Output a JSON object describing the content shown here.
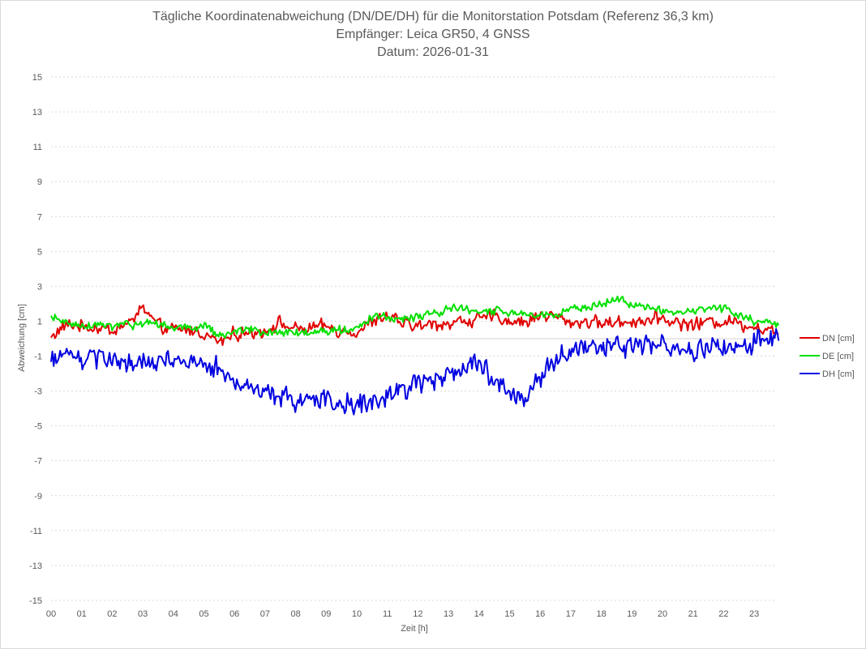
{
  "chart_data": {
    "type": "line",
    "title": "Tägliche Koordinatenabweichung (DN/DE/DH) für die Monitorstation Potsdam (Referenz 36,3 km)",
    "subtitle": "Empfänger: Leica GR50, 4 GNSS",
    "date_line": "Datum: 2026-01-31",
    "xlabel": "Zeit [h]",
    "ylabel": "Abweichung [cm]",
    "xlim": [
      0,
      24
    ],
    "ylim": [
      -15,
      15
    ],
    "y_ticks": [
      "15",
      "13",
      "11",
      "9",
      "7",
      "5",
      "3",
      "1",
      "-1",
      "-3",
      "-5",
      "-7",
      "-9",
      "-11",
      "-13",
      "-15"
    ],
    "x_ticks": [
      "00",
      "01",
      "02",
      "03",
      "04",
      "05",
      "06",
      "07",
      "08",
      "09",
      "10",
      "11",
      "12",
      "13",
      "14",
      "15",
      "16",
      "17",
      "18",
      "19",
      "20",
      "21",
      "22",
      "23"
    ],
    "grid": true,
    "legend_position": "right",
    "x": [
      0,
      0.5,
      1,
      1.5,
      2,
      2.5,
      3,
      3.5,
      4,
      4.5,
      5,
      5.5,
      6,
      6.5,
      7,
      7.5,
      8,
      8.5,
      9,
      9.5,
      10,
      10.5,
      11,
      11.5,
      12,
      12.5,
      13,
      13.5,
      14,
      14.5,
      15,
      15.5,
      16,
      16.5,
      17,
      17.5,
      18,
      18.5,
      19,
      19.5,
      20,
      20.5,
      21,
      21.5,
      22,
      22.5,
      23,
      23.5,
      23.8
    ],
    "series": [
      {
        "name": "DN [cm]",
        "color": "#e00000",
        "jitter": 0.45,
        "values": [
          0.1,
          0.8,
          0.7,
          0.6,
          0.5,
          0.8,
          1.8,
          0.7,
          0.5,
          0.5,
          0.3,
          -0.2,
          0.3,
          0.3,
          0.5,
          0.9,
          0.5,
          0.6,
          0.7,
          0.4,
          0.4,
          0.9,
          1.3,
          0.9,
          0.7,
          0.8,
          0.9,
          1.0,
          1.1,
          1.3,
          1.0,
          0.9,
          1.4,
          1.3,
          0.9,
          1.0,
          0.9,
          0.9,
          1.0,
          1.1,
          1.2,
          0.9,
          0.8,
          1.0,
          1.0,
          0.9,
          0.7,
          0.5,
          0.3
        ]
      },
      {
        "name": "DE [cm]",
        "color": "#00e000",
        "jitter": 0.3,
        "values": [
          1.2,
          0.9,
          0.8,
          0.8,
          0.7,
          0.8,
          0.8,
          0.8,
          0.7,
          0.6,
          0.7,
          0.2,
          0.4,
          0.5,
          0.3,
          0.4,
          0.4,
          0.3,
          0.4,
          0.5,
          0.6,
          1.2,
          1.2,
          1.1,
          1.3,
          1.4,
          1.7,
          1.7,
          1.6,
          1.6,
          1.5,
          1.4,
          1.3,
          1.3,
          1.7,
          1.8,
          2.1,
          2.3,
          2.0,
          1.8,
          1.6,
          1.5,
          1.6,
          1.8,
          1.7,
          1.3,
          1.0,
          0.9,
          0.8
        ]
      },
      {
        "name": "DH [cm]",
        "color": "#0000e0",
        "jitter": 0.75,
        "values": [
          -1.2,
          -0.8,
          -1.2,
          -1.2,
          -1.2,
          -1.3,
          -1.5,
          -1.3,
          -1.4,
          -1.5,
          -1.6,
          -1.7,
          -2.6,
          -2.8,
          -2.9,
          -3.3,
          -3.6,
          -3.3,
          -3.5,
          -3.7,
          -3.8,
          -3.6,
          -3.2,
          -2.8,
          -2.6,
          -2.3,
          -2.2,
          -1.5,
          -1.6,
          -2.2,
          -3.2,
          -3.4,
          -2.1,
          -1.2,
          -0.6,
          -0.5,
          -0.7,
          -0.5,
          -0.6,
          -0.3,
          -0.4,
          -0.5,
          -0.7,
          -0.6,
          -0.5,
          -0.4,
          -0.2,
          0.0,
          0.2
        ]
      }
    ]
  }
}
